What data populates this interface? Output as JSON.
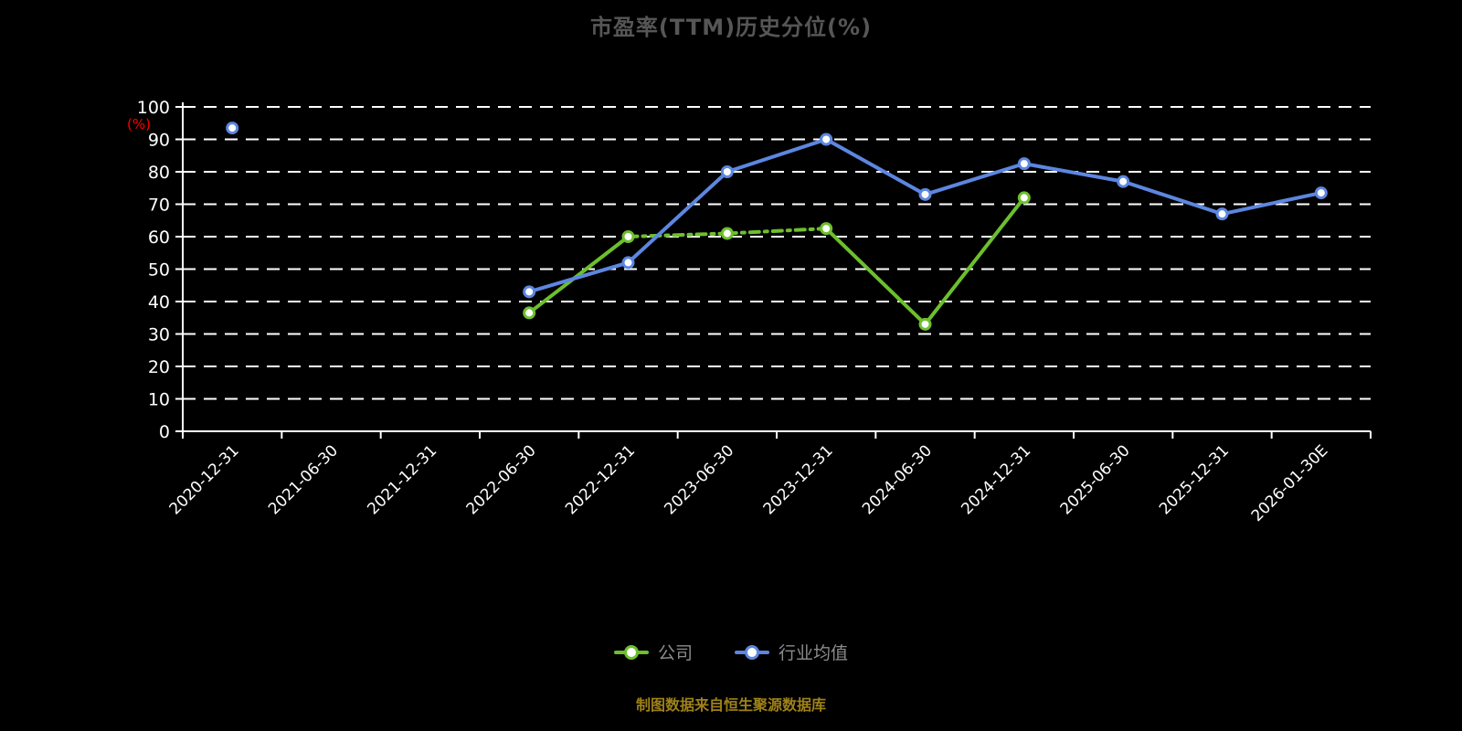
{
  "title": "市盈率(TTM)历史分位(%)",
  "source_note": "制图数据来自恒生聚源数据库",
  "colors": {
    "background": "#000000",
    "title": "#565656",
    "axis": "#ffffff",
    "grid": "#ffffff",
    "tick_text": "#ffffff",
    "y_unit_label": "#ff0000",
    "legend_text": "#8c8c8c",
    "source": "#9e8118",
    "company": "#6dbf2d",
    "industry": "#5c86e0",
    "marker_fill": "#ffffff"
  },
  "chart_data": {
    "type": "line",
    "title": "市盈率(TTM)历史分位(%)",
    "ylabel": "(%)",
    "xlabel": "",
    "ylim": [
      0,
      100
    ],
    "y_ticks": [
      0,
      10,
      20,
      30,
      40,
      50,
      60,
      70,
      80,
      90,
      100
    ],
    "grid": "horizontal dashed white",
    "legend_position": "bottom",
    "categories": [
      "2020-12-31",
      "2021-06-30",
      "2021-12-31",
      "2022-06-30",
      "2022-12-31",
      "2023-06-30",
      "2023-12-31",
      "2024-06-30",
      "2024-12-31",
      "2025-06-30",
      "2025-12-31",
      "2026-01-30E"
    ],
    "series": [
      {
        "id": "company",
        "name": "公司",
        "color": "#6dbf2d",
        "values": [
          null,
          null,
          null,
          36.5,
          60,
          61,
          62.5,
          33,
          72,
          null,
          null,
          null
        ],
        "dashed_segments": [
          [
            4,
            6
          ]
        ]
      },
      {
        "id": "industry",
        "name": "行业均值",
        "color": "#5c86e0",
        "values": [
          93.5,
          null,
          null,
          43,
          52,
          80,
          90,
          73,
          82.5,
          77,
          67,
          73.5
        ],
        "dashed_segments": []
      }
    ]
  },
  "legend": {
    "items": [
      {
        "label": "公司"
      },
      {
        "label": "行业均值"
      }
    ]
  }
}
